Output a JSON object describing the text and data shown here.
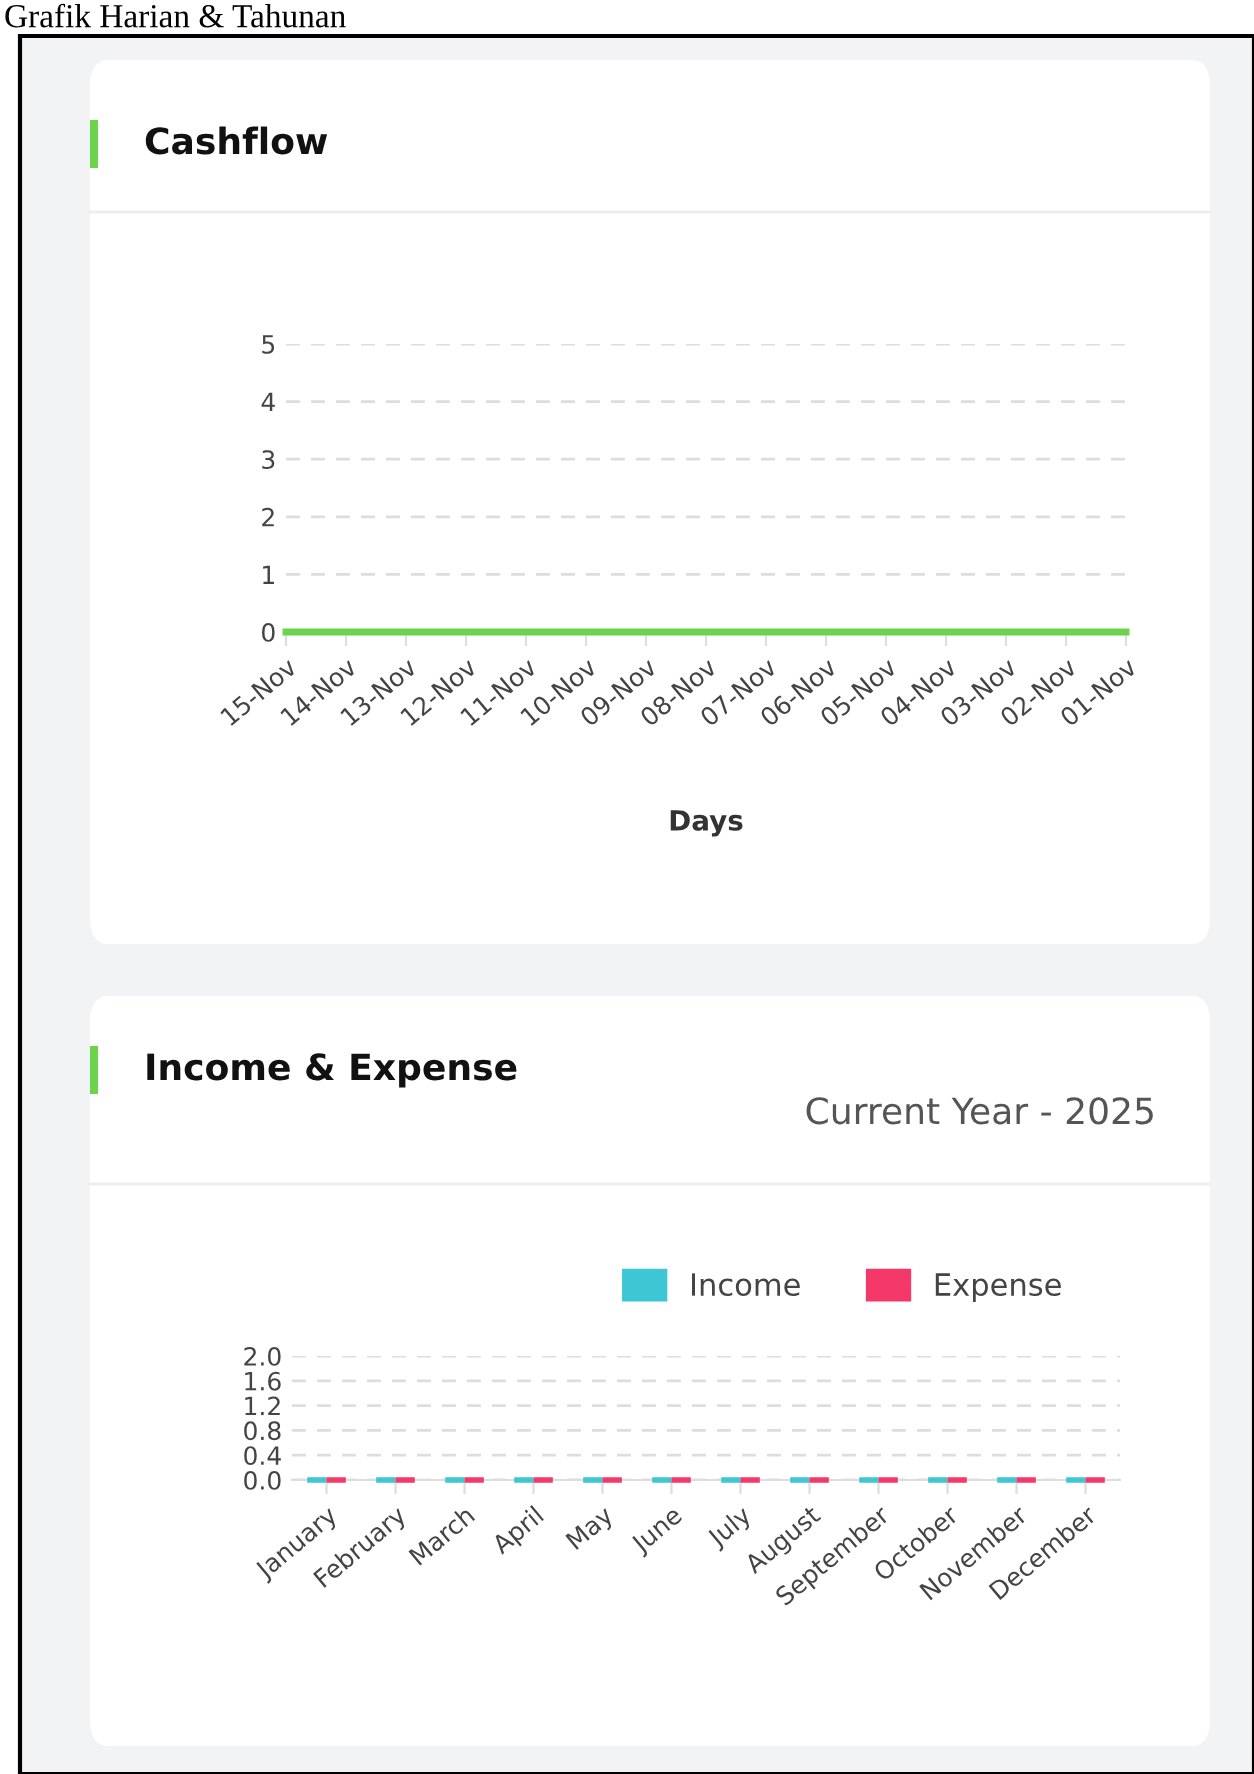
{
  "chart_data": [
    {
      "type": "line",
      "title": "Cashflow",
      "xlabel": "Days",
      "annotations": [
        "Grafik Harian & Tahunan"
      ],
      "categories": [
        "15-Nov",
        "14-Nov",
        "13-Nov",
        "12-Nov",
        "11-Nov",
        "10-Nov",
        "09-Nov",
        "08-Nov",
        "07-Nov",
        "06-Nov",
        "05-Nov",
        "04-Nov",
        "03-Nov",
        "02-Nov",
        "01-Nov"
      ],
      "series": [
        {
          "color": "#6cd44c",
          "values": [
            0,
            0,
            0,
            0,
            0,
            0,
            0,
            0,
            0,
            0,
            0,
            0,
            0,
            0,
            0
          ]
        }
      ],
      "ylim": [
        0,
        5
      ],
      "yticks": [
        0,
        1,
        2,
        3,
        4,
        5
      ],
      "grid": "y",
      "marker": "none",
      "line_style": "solid"
    },
    {
      "type": "bar",
      "title": "Income & Expense",
      "subtitle": "Current Year - 2025",
      "categories": [
        "January",
        "February",
        "March",
        "April",
        "May",
        "June",
        "July",
        "August",
        "September",
        "October",
        "November",
        "December"
      ],
      "series": [
        {
          "name": "Income",
          "color": "#3ec6d4",
          "values": [
            0,
            0,
            0,
            0,
            0,
            0,
            0,
            0,
            0,
            0,
            0,
            0
          ]
        },
        {
          "name": "Expense",
          "color": "#f5386a",
          "values": [
            0,
            0,
            0,
            0,
            0,
            0,
            0,
            0,
            0,
            0,
            0,
            0
          ]
        }
      ],
      "ylim": [
        0,
        2
      ],
      "yticks": [
        {
          "value": 0,
          "label": "0.0"
        },
        {
          "value": 0.4,
          "label": "0.4"
        },
        {
          "value": 0.8,
          "label": "0.8"
        },
        {
          "value": 1.2,
          "label": "1.2"
        },
        {
          "value": 1.6,
          "label": "1.6"
        },
        {
          "value": 2,
          "label": "2.0"
        }
      ],
      "grid": "y",
      "legend": "top right"
    }
  ]
}
